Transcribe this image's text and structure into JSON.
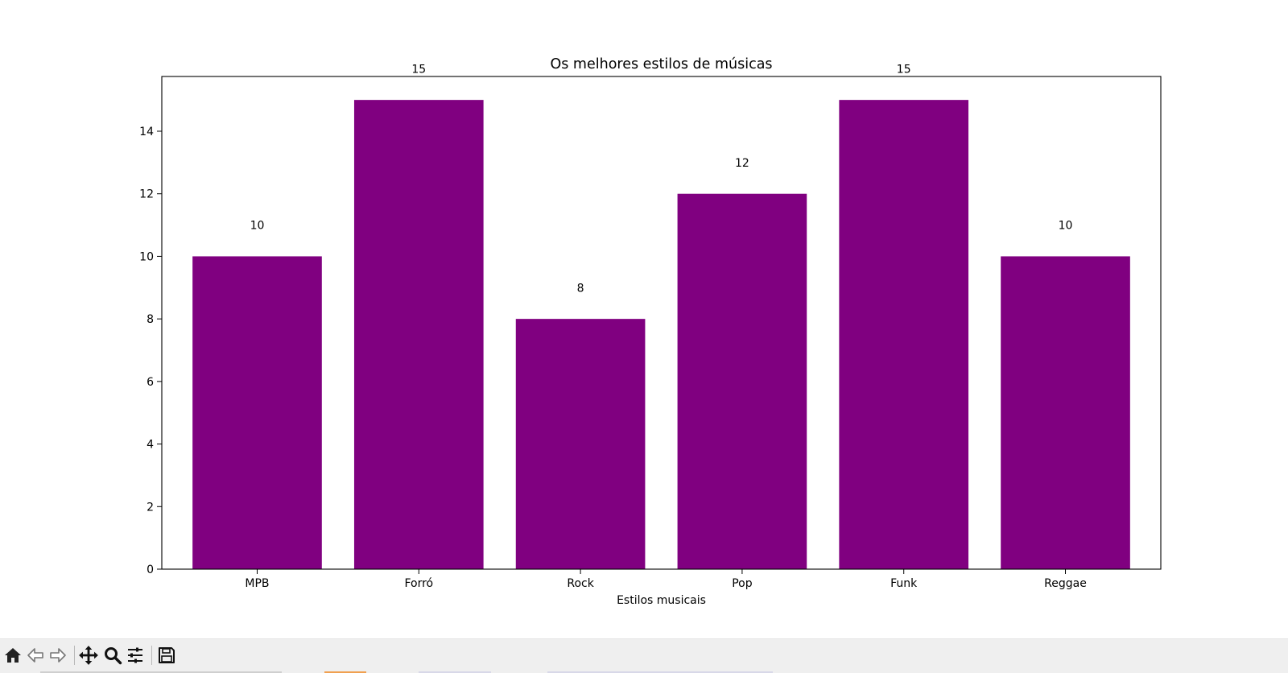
{
  "chart_data": {
    "type": "bar",
    "title": "Os melhores estilos de músicas",
    "xlabel": "Estilos musicais",
    "ylabel": "",
    "categories": [
      "MPB",
      "Forró",
      "Rock",
      "Pop",
      "Funk",
      "Reggae"
    ],
    "values": [
      10,
      15,
      8,
      12,
      15,
      10
    ],
    "data_labels": [
      "10",
      "15",
      "8",
      "12",
      "15",
      "10"
    ],
    "ylim": [
      0,
      15.75
    ],
    "yticks": [
      0,
      2,
      4,
      6,
      8,
      10,
      12,
      14
    ],
    "bar_color": "#800080",
    "grid": false
  },
  "toolbar": {
    "buttons": [
      {
        "name": "home-icon"
      },
      {
        "name": "back-arrow-icon"
      },
      {
        "name": "forward-arrow-icon"
      },
      {
        "name": "pan-move-icon"
      },
      {
        "name": "zoom-magnifier-icon"
      },
      {
        "name": "configure-subplots-icon"
      },
      {
        "name": "save-floppy-icon"
      }
    ]
  }
}
